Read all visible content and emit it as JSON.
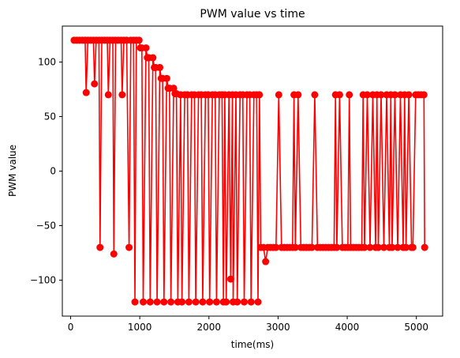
{
  "chart_data": {
    "type": "line",
    "title": "PWM value vs time",
    "xlabel": "time(ms)",
    "ylabel": "PWM value",
    "xlim": [
      -120,
      5380
    ],
    "ylim": [
      -133,
      133
    ],
    "xticks": [
      0,
      1000,
      2000,
      3000,
      4000,
      5000
    ],
    "yticks": [
      -100,
      -50,
      0,
      50,
      100
    ],
    "grid": false,
    "legend": "none",
    "colors": {
      "series": "#ff0000"
    },
    "series": [
      {
        "marker": "circle",
        "x": [
          50,
          90,
          130,
          170,
          210,
          225,
          250,
          290,
          330,
          345,
          370,
          410,
          425,
          450,
          490,
          530,
          545,
          570,
          610,
          625,
          650,
          690,
          730,
          745,
          770,
          810,
          845,
          870,
          910,
          930,
          950,
          990,
          1010,
          1030,
          1050,
          1090,
          1110,
          1130,
          1150,
          1190,
          1210,
          1230,
          1250,
          1290,
          1310,
          1330,
          1350,
          1390,
          1410,
          1430,
          1450,
          1490,
          1510,
          1530,
          1550,
          1590,
          1610,
          1650,
          1690,
          1710,
          1750,
          1790,
          1810,
          1850,
          1890,
          1910,
          1950,
          1990,
          2010,
          2050,
          2090,
          2110,
          2150,
          2190,
          2210,
          2230,
          2250,
          2290,
          2315,
          2340,
          2350,
          2390,
          2410,
          2450,
          2490,
          2510,
          2550,
          2590,
          2610,
          2650,
          2690,
          2710,
          2730,
          2750,
          2790,
          2820,
          2850,
          2890,
          2930,
          2970,
          3010,
          3050,
          3090,
          3130,
          3170,
          3210,
          3230,
          3250,
          3290,
          3330,
          3370,
          3410,
          3450,
          3490,
          3530,
          3570,
          3610,
          3650,
          3690,
          3730,
          3770,
          3810,
          3830,
          3850,
          3890,
          3930,
          3970,
          4010,
          4030,
          4050,
          4090,
          4130,
          4170,
          4210,
          4230,
          4250,
          4290,
          4330,
          4370,
          4410,
          4430,
          4450,
          4490,
          4530,
          4570,
          4610,
          4630,
          4650,
          4690,
          4730,
          4770,
          4810,
          4830,
          4850,
          4890,
          4930,
          4950,
          4990,
          5030,
          5070,
          5110,
          5120
        ],
        "y": [
          120,
          120,
          120,
          120,
          120,
          72,
          120,
          120,
          120,
          80,
          120,
          120,
          -70,
          120,
          120,
          120,
          70,
          120,
          120,
          -76,
          120,
          120,
          120,
          70,
          120,
          120,
          -70,
          120,
          120,
          -120,
          120,
          120,
          113,
          113,
          -120,
          113,
          104,
          104,
          -120,
          104,
          95,
          95,
          -120,
          95,
          85,
          85,
          -120,
          85,
          76,
          76,
          -120,
          76,
          71,
          71,
          -120,
          70,
          -120,
          70,
          70,
          -120,
          70,
          70,
          -120,
          70,
          70,
          -120,
          70,
          70,
          -120,
          70,
          70,
          -120,
          70,
          70,
          -120,
          70,
          -120,
          70,
          -99,
          70,
          -120,
          70,
          -120,
          70,
          70,
          -120,
          70,
          70,
          -120,
          70,
          70,
          -120,
          70,
          -70,
          -70,
          -83,
          -70,
          -70,
          -70,
          -70,
          70,
          -70,
          -70,
          -70,
          -70,
          -70,
          70,
          -70,
          70,
          -70,
          -70,
          -70,
          -70,
          -70,
          70,
          -70,
          -70,
          -70,
          -70,
          -70,
          -70,
          -70,
          70,
          -70,
          70,
          -70,
          -70,
          -70,
          70,
          -70,
          -70,
          -70,
          -70,
          -70,
          70,
          -70,
          70,
          -70,
          70,
          -70,
          70,
          -70,
          70,
          -70,
          70,
          -70,
          70,
          -70,
          70,
          -70,
          70,
          -70,
          70,
          -70,
          70,
          -70,
          -70,
          70,
          70,
          70,
          70,
          -70
        ]
      }
    ]
  }
}
